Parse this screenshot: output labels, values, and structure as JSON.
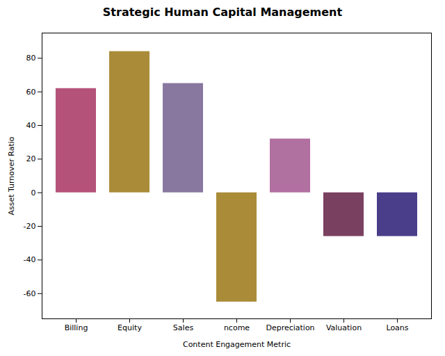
{
  "chart_data": {
    "type": "bar",
    "title": "Strategic Human Capital Management",
    "xlabel": "Content Engagement Metric",
    "ylabel": "Asset Turnover Ratio",
    "categories": [
      "Billing",
      "Equity",
      "Sales",
      "ncome",
      "Depreciation",
      "Valuation",
      "Loans"
    ],
    "values": [
      62,
      84,
      65,
      -65,
      32,
      -26,
      -26
    ],
    "colors": [
      "#b5527a",
      "#aa8c38",
      "#8878a0",
      "#aa8c38",
      "#b070a0",
      "#7a4060",
      "#4a3d8a"
    ],
    "ylim": [
      -75,
      95
    ],
    "yticks": [
      -60,
      -40,
      -20,
      0,
      20,
      40,
      60,
      80
    ],
    "grid": false
  }
}
